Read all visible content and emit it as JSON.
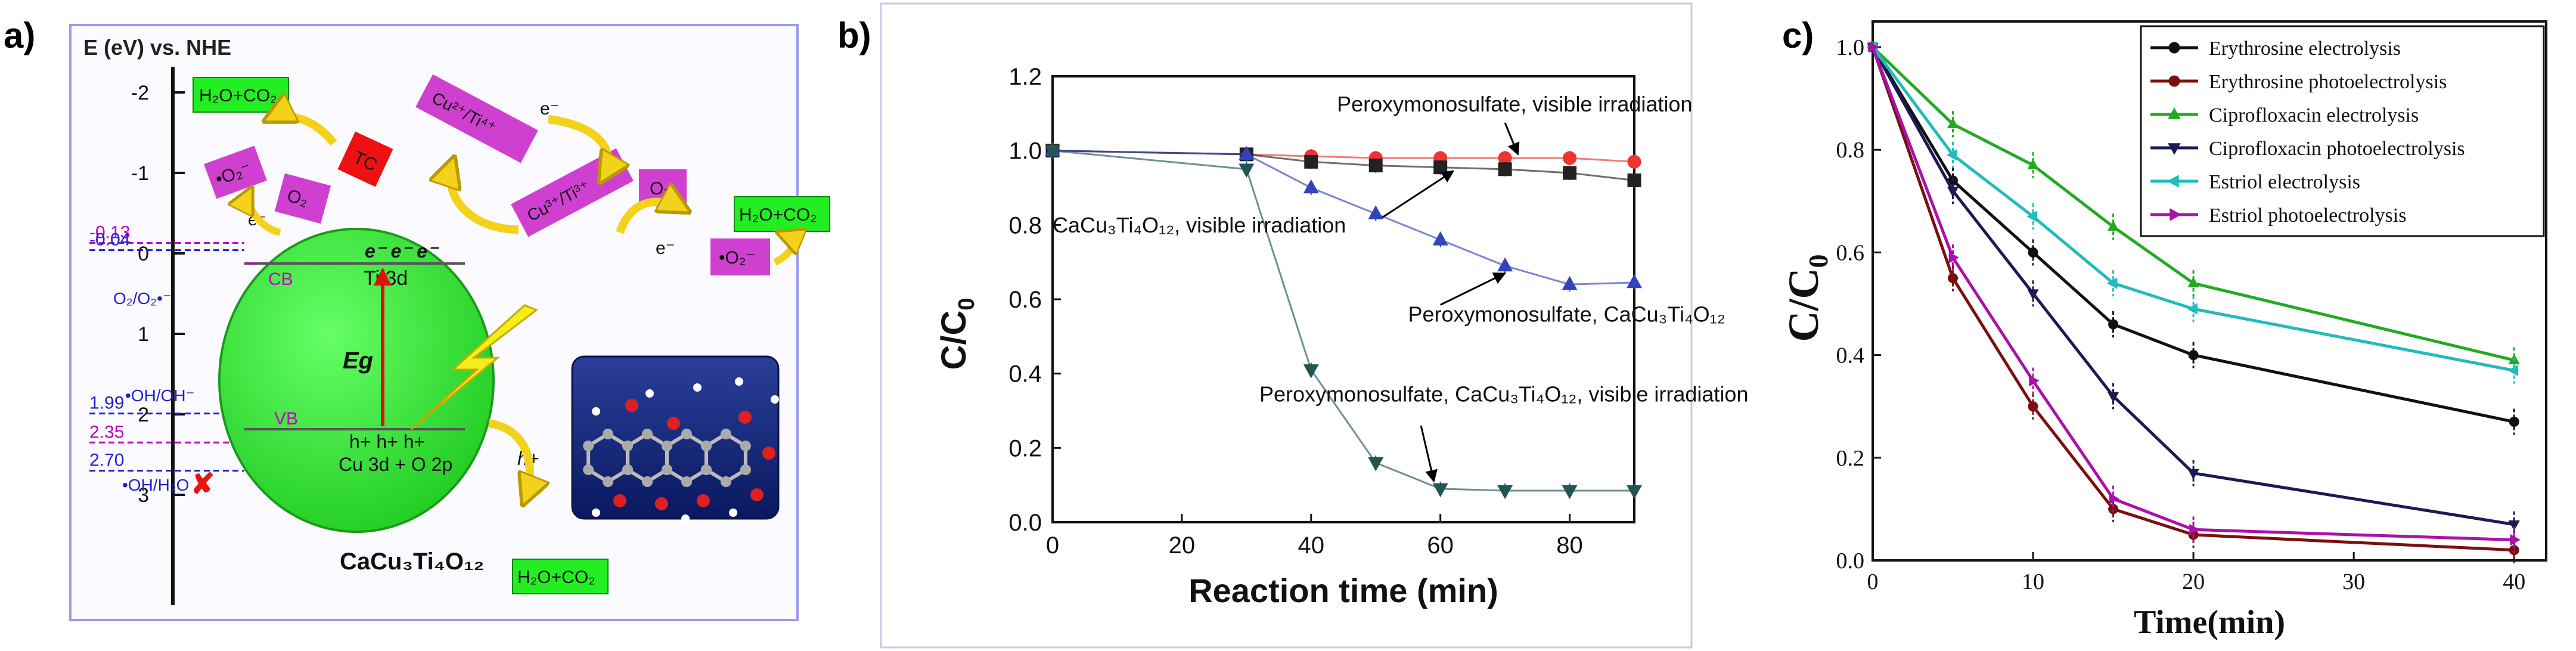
{
  "panel_a": {
    "letter": "a)",
    "axis_title": "E (eV) vs. NHE",
    "ticks": [
      {
        "v": -2,
        "t": "-2"
      },
      {
        "v": -1,
        "t": "-1"
      },
      {
        "v": 0,
        "t": "0"
      },
      {
        "v": 1,
        "t": "1"
      },
      {
        "v": 2,
        "t": "2"
      },
      {
        "v": 3,
        "t": "3"
      }
    ],
    "levels": [
      {
        "v": -0.13,
        "t": "-0.13",
        "color": "#c000c0"
      },
      {
        "v": -0.04,
        "t": "-0.04",
        "color": "#2020d0"
      },
      {
        "v": 1.99,
        "t": "1.99",
        "color": "#2020d0"
      },
      {
        "v": 2.35,
        "t": "2.35",
        "color": "#c000c0"
      },
      {
        "v": 2.7,
        "t": "2.70",
        "color": "#2020d0"
      }
    ],
    "couples": [
      "O₂/O₂•⁻",
      "•OH/OH⁻",
      "•OH/H₂O"
    ],
    "cb": "CB",
    "vb": "VB",
    "ti3d": "Ti 3d",
    "cu3d": "Cu 3d + O 2p",
    "electrons": "e⁻  e⁻  e⁻",
    "holes": "h+  h+  h+",
    "eg": "Eg",
    "material": "CaCu₃Ti₄O₁₂",
    "products": "H₂O+CO₂",
    "tc": "TC",
    "o2_radical": "•O₂⁻",
    "o2": "O₂",
    "cu_ti_1": "Cu²⁺/Ti⁴⁺",
    "cu_ti_2": "Cu³⁺/Ti³⁺",
    "e_minus": "e⁻",
    "h_plus": "h+",
    "cross": "✘",
    "colors": {
      "green": "#22ee22",
      "magenta": "#d040d0",
      "red": "#ee1111",
      "frame": "#9999ee"
    }
  },
  "chart_data": [
    {
      "type": "scatter",
      "panel": "b)",
      "xlabel": "Reaction time (min)",
      "ylabel": "C/C",
      "ylabel_sub": "0",
      "xlim": [
        0,
        90
      ],
      "ylim": [
        0,
        1.2
      ],
      "xticks": [
        0,
        20,
        40,
        60,
        80
      ],
      "yticks": [
        0.0,
        0.2,
        0.4,
        0.6,
        0.8,
        1.0,
        1.2
      ],
      "series": [
        {
          "color": "#ee3333",
          "marker": "circle",
          "x": [
            0,
            30,
            40,
            50,
            60,
            70,
            80,
            90
          ],
          "y": [
            1.0,
            0.99,
            0.985,
            0.98,
            0.98,
            0.98,
            0.98,
            0.97
          ]
        },
        {
          "color": "#222222",
          "marker": "square",
          "x": [
            0,
            30,
            40,
            50,
            60,
            70,
            80,
            90
          ],
          "y": [
            1.0,
            0.99,
            0.97,
            0.96,
            0.955,
            0.95,
            0.94,
            0.92
          ]
        },
        {
          "color": "#3344bb",
          "marker": "triangle",
          "x": [
            0,
            30,
            40,
            50,
            60,
            70,
            80,
            90
          ],
          "y": [
            1.0,
            0.99,
            0.9,
            0.83,
            0.76,
            0.69,
            0.64,
            0.645
          ]
        },
        {
          "color": "#225555",
          "marker": "triangle-down",
          "x": [
            0,
            30,
            40,
            50,
            60,
            70,
            80,
            90
          ],
          "y": [
            1.0,
            0.95,
            0.41,
            0.16,
            0.09,
            0.085,
            0.085,
            0.085
          ]
        }
      ],
      "annotations": [
        {
          "text": "Peroxymonosulfate, visible irradiation",
          "x": 44,
          "y": 1.105,
          "ax": 70,
          "ay": 1.075,
          "bx": 72,
          "by": 0.99
        },
        {
          "text": "CaCu₃Ti₄O₁₂, visible irradiation",
          "x": 0,
          "y": 0.78,
          "ax": 51,
          "ay": 0.82,
          "bx": 62,
          "by": 0.945
        },
        {
          "text": "Peroxymonosulfate, CaCu₃Ti₄O₁₂",
          "x": 55,
          "y": 0.54,
          "ax": 60,
          "ay": 0.585,
          "bx": 70,
          "by": 0.67
        },
        {
          "text": "Peroxymonosulfate, CaCu₃Ti₄O₁₂, visible irradiation",
          "x": 32,
          "y": 0.325,
          "ax": 57,
          "ay": 0.26,
          "bx": 59,
          "by": 0.11
        }
      ]
    },
    {
      "type": "line",
      "panel": "c)",
      "xlabel": "Time(min)",
      "ylabel": "C/C",
      "ylabel_sub": "0",
      "xlim": [
        0,
        42
      ],
      "ylim": [
        0,
        1.05
      ],
      "xticks": [
        0,
        10,
        20,
        30,
        40
      ],
      "yticks": [
        0.0,
        0.2,
        0.4,
        0.6,
        0.8,
        1.0
      ],
      "x": [
        0,
        5,
        10,
        15,
        20,
        40
      ],
      "series": [
        {
          "name": "Erythrosine electrolysis",
          "color": "#111111",
          "marker": "circle",
          "values": [
            1.0,
            0.74,
            0.6,
            0.46,
            0.4,
            0.27
          ]
        },
        {
          "name": "Erythrosine photoelectrolysis",
          "color": "#7a1010",
          "marker": "circle",
          "values": [
            1.0,
            0.55,
            0.3,
            0.1,
            0.05,
            0.02
          ]
        },
        {
          "name": "Ciprofloxacin electrolysis",
          "color": "#22aa22",
          "marker": "triangle",
          "values": [
            1.0,
            0.85,
            0.77,
            0.65,
            0.54,
            0.39
          ]
        },
        {
          "name": "Ciprofloxacin photoelectrolysis",
          "color": "#1a1a55",
          "marker": "triangle-down",
          "values": [
            1.0,
            0.72,
            0.52,
            0.32,
            0.17,
            0.07
          ]
        },
        {
          "name": "Estriol electrolysis",
          "color": "#22bbbb",
          "marker": "triangle-left",
          "values": [
            1.0,
            0.79,
            0.67,
            0.54,
            0.49,
            0.37
          ]
        },
        {
          "name": "Estriol photoelectrolysis",
          "color": "#aa11aa",
          "marker": "triangle-right",
          "values": [
            1.0,
            0.59,
            0.35,
            0.12,
            0.06,
            0.04
          ]
        }
      ]
    }
  ]
}
